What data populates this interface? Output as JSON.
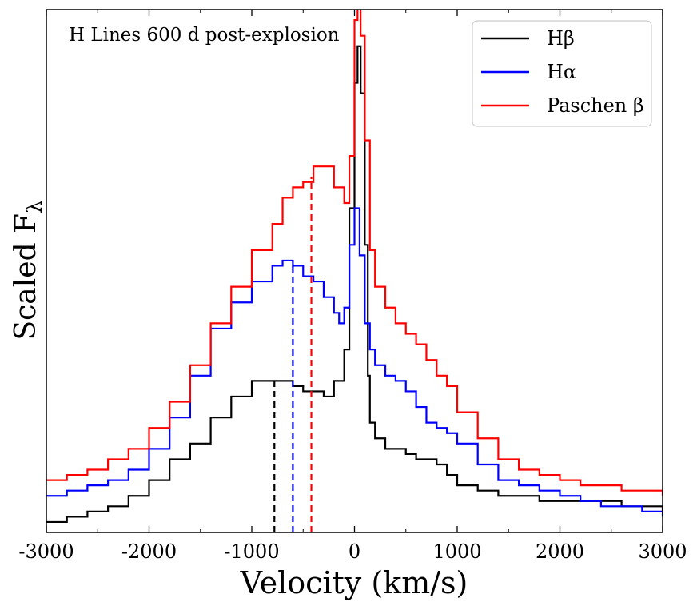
{
  "chart_data": {
    "type": "line",
    "title": "",
    "annotation": "H Lines 600 d post-explosion",
    "xlabel": "Velocity (km/s)",
    "ylabel_main": "Scaled F",
    "ylabel_sub": "λ",
    "xlim": [
      -3000,
      3000
    ],
    "ylim": [
      0,
      1.0
    ],
    "xticks": [
      -3000,
      -2000,
      -1000,
      0,
      1000,
      2000,
      3000
    ],
    "xtick_labels": [
      "-3000",
      "-2000",
      "-1000",
      "0",
      "1000",
      "2000",
      "3000"
    ],
    "grid": false,
    "legend_position": "top-right",
    "series": [
      {
        "name": "Hβ",
        "color": "#000000",
        "x": [
          -3000,
          -2800,
          -2600,
          -2400,
          -2200,
          -2000,
          -1800,
          -1600,
          -1400,
          -1200,
          -1000,
          -800,
          -600,
          -500,
          -400,
          -300,
          -200,
          -100,
          -50,
          0,
          30,
          60,
          100,
          130,
          150,
          200,
          300,
          400,
          500,
          600,
          700,
          800,
          900,
          1000,
          1200,
          1400,
          1600,
          1800,
          2000,
          2200,
          2400,
          2600,
          2800,
          3000
        ],
        "values": [
          0.02,
          0.03,
          0.04,
          0.05,
          0.07,
          0.1,
          0.14,
          0.17,
          0.22,
          0.26,
          0.29,
          0.29,
          0.28,
          0.27,
          0.27,
          0.26,
          0.29,
          0.35,
          0.62,
          0.86,
          0.93,
          0.84,
          0.55,
          0.3,
          0.21,
          0.18,
          0.16,
          0.16,
          0.15,
          0.14,
          0.14,
          0.13,
          0.11,
          0.09,
          0.08,
          0.07,
          0.07,
          0.06,
          0.06,
          0.06,
          0.06,
          0.05,
          0.05,
          0.04
        ]
      },
      {
        "name": "Hα",
        "color": "#0000ff",
        "x": [
          -3000,
          -2800,
          -2600,
          -2400,
          -2200,
          -2000,
          -1800,
          -1600,
          -1400,
          -1200,
          -1000,
          -800,
          -700,
          -600,
          -500,
          -400,
          -300,
          -200,
          -150,
          -100,
          -50,
          0,
          50,
          100,
          150,
          200,
          300,
          400,
          500,
          600,
          700,
          800,
          900,
          1000,
          1200,
          1400,
          1600,
          1800,
          2000,
          2200,
          2400,
          2600,
          2800,
          3000
        ],
        "values": [
          0.07,
          0.08,
          0.09,
          0.1,
          0.12,
          0.16,
          0.22,
          0.3,
          0.39,
          0.44,
          0.48,
          0.51,
          0.52,
          0.51,
          0.49,
          0.48,
          0.45,
          0.42,
          0.4,
          0.43,
          0.55,
          0.62,
          0.53,
          0.4,
          0.35,
          0.32,
          0.3,
          0.29,
          0.27,
          0.24,
          0.21,
          0.2,
          0.19,
          0.17,
          0.13,
          0.1,
          0.09,
          0.08,
          0.07,
          0.06,
          0.05,
          0.05,
          0.04,
          0.03
        ]
      },
      {
        "name": "Paschen β",
        "color": "#ff0000",
        "x": [
          -3000,
          -2800,
          -2600,
          -2400,
          -2200,
          -2000,
          -1800,
          -1600,
          -1400,
          -1200,
          -1000,
          -800,
          -700,
          -600,
          -500,
          -400,
          -300,
          -200,
          -100,
          -50,
          0,
          30,
          60,
          100,
          150,
          200,
          300,
          400,
          500,
          600,
          700,
          800,
          900,
          1000,
          1200,
          1400,
          1600,
          1800,
          2000,
          2200,
          2400,
          2600,
          2800,
          3000
        ],
        "values": [
          0.1,
          0.11,
          0.12,
          0.14,
          0.16,
          0.2,
          0.25,
          0.32,
          0.4,
          0.47,
          0.54,
          0.59,
          0.64,
          0.66,
          0.67,
          0.7,
          0.7,
          0.66,
          0.63,
          0.72,
          0.98,
          1.05,
          0.95,
          0.75,
          0.54,
          0.47,
          0.43,
          0.4,
          0.38,
          0.36,
          0.33,
          0.3,
          0.28,
          0.23,
          0.18,
          0.14,
          0.12,
          0.11,
          0.1,
          0.09,
          0.09,
          0.08,
          0.08,
          0.07
        ]
      }
    ],
    "vlines": [
      {
        "name": "Hβ peak",
        "color": "#000000",
        "x": -780,
        "ymax": 0.29
      },
      {
        "name": "Hα peak",
        "color": "#0000ff",
        "x": -600,
        "ymax": 0.51
      },
      {
        "name": "Paschen β peak",
        "color": "#ff0000",
        "x": -420,
        "ymax": 0.68
      }
    ]
  }
}
